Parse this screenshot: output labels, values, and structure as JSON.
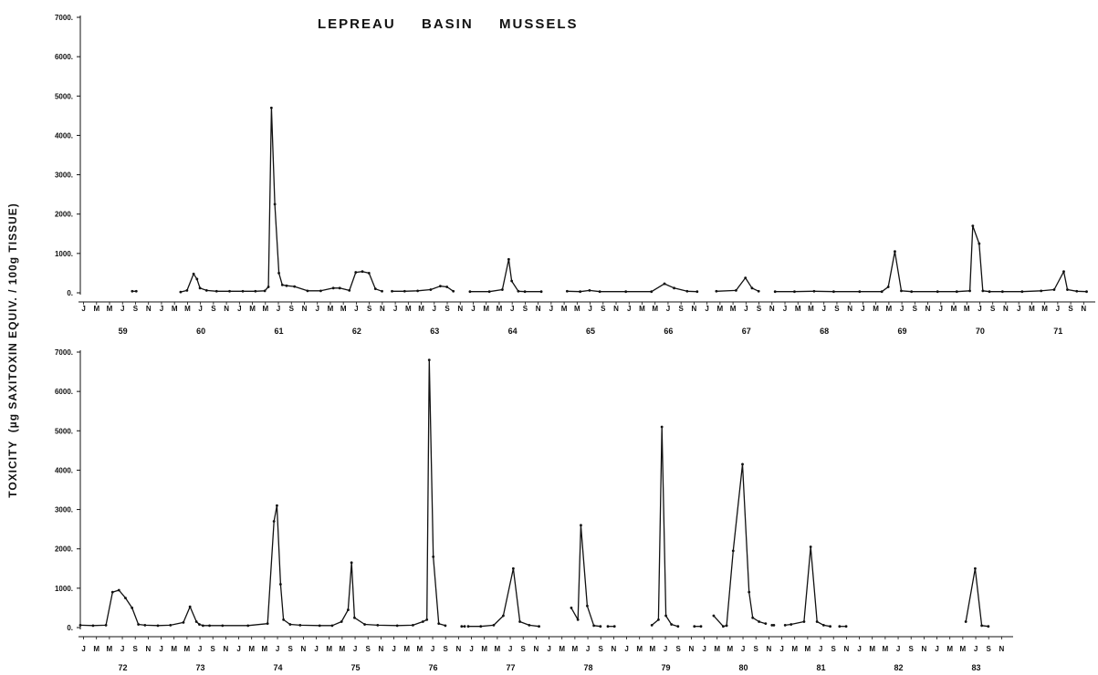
{
  "chart_data": {
    "type": "line",
    "title": "LEPREAU  BASIN  MUSSELS",
    "ylabel": "TOXICITY  (µg SAXITOXIN EQUIV. / 100g TISSUE)",
    "ylim": [
      0,
      7000
    ],
    "yticks": [
      "7000.",
      "6000.",
      "5000.",
      "4000.",
      "3000.",
      "2000.",
      "1000.",
      "0."
    ],
    "grid": false,
    "month_labels": [
      "J",
      "M",
      "M",
      "J",
      "S",
      "N"
    ],
    "panels": [
      {
        "years": [
          "59",
          "60",
          "61",
          "62",
          "63",
          "64",
          "65",
          "66",
          "67",
          "68",
          "69",
          "70",
          "71"
        ],
        "series": [
          {
            "x": [
              "1959-09-01",
              "1959-09-20"
            ],
            "y": [
              40,
              40
            ]
          },
          {
            "x": [
              "1960-04-15",
              "1960-05-15",
              "1960-06-15",
              "1960-07-01",
              "1960-07-15",
              "1960-08-15",
              "1960-10-01",
              "1960-12-01",
              "1961-02-01",
              "1961-04-01",
              "1961-05-15",
              "1961-06-01",
              "1961-06-15",
              "1961-07-01",
              "1961-07-20",
              "1961-08-05",
              "1961-08-25",
              "1961-10-01",
              "1961-12-01",
              "1962-02-01",
              "1962-04-01",
              "1962-05-01",
              "1962-06-15",
              "1962-07-15",
              "1962-08-15",
              "1962-09-15",
              "1962-10-15",
              "1962-11-15"
            ],
            "y": [
              20,
              60,
              480,
              350,
              120,
              60,
              40,
              40,
              40,
              40,
              50,
              150,
              4700,
              2250,
              500,
              200,
              180,
              160,
              50,
              50,
              120,
              120,
              60,
              520,
              540,
              500,
              100,
              40
            ]
          },
          {
            "x": [
              "1963-01-01",
              "1963-03-01",
              "1963-05-01",
              "1963-07-01",
              "1963-08-15",
              "1963-09-15",
              "1963-10-15"
            ],
            "y": [
              40,
              40,
              50,
              80,
              170,
              150,
              40
            ]
          },
          {
            "x": [
              "1964-01-01",
              "1964-04-01",
              "1964-06-01",
              "1964-07-01",
              "1964-07-15",
              "1964-08-15",
              "1964-09-15",
              "1964-12-01"
            ],
            "y": [
              30,
              30,
              80,
              850,
              300,
              40,
              30,
              30
            ]
          },
          {
            "x": [
              "1965-04-01",
              "1965-06-01",
              "1965-07-15",
              "1965-09-01",
              "1966-01-01",
              "1966-05-01",
              "1966-07-01",
              "1966-08-15",
              "1966-10-15",
              "1966-12-01"
            ],
            "y": [
              40,
              30,
              60,
              30,
              30,
              30,
              230,
              120,
              40,
              30
            ]
          },
          {
            "x": [
              "1967-03-01",
              "1967-06-01",
              "1967-07-15",
              "1967-08-15",
              "1967-09-15"
            ],
            "y": [
              40,
              60,
              380,
              120,
              40
            ]
          },
          {
            "x": [
              "1967-12-01",
              "1968-03-01",
              "1968-06-01",
              "1968-09-01",
              "1969-01-01",
              "1969-04-15",
              "1969-05-15",
              "1969-06-15",
              "1969-07-15",
              "1969-09-01",
              "1970-01-01",
              "1970-04-01",
              "1970-06-01",
              "1970-06-15",
              "1970-07-15",
              "1970-08-01",
              "1970-09-01",
              "1970-11-01",
              "1971-02-01",
              "1971-05-01",
              "1971-07-01",
              "1971-08-15",
              "1971-09-01",
              "1971-10-15",
              "1971-11-30"
            ],
            "y": [
              30,
              30,
              40,
              30,
              30,
              30,
              150,
              1050,
              50,
              30,
              30,
              30,
              50,
              1700,
              1250,
              50,
              30,
              30,
              30,
              50,
              80,
              540,
              80,
              40,
              30
            ]
          }
        ]
      },
      {
        "years": [
          "72",
          "73",
          "74",
          "75",
          "76",
          "77",
          "78",
          "79",
          "80",
          "81",
          "82",
          "83"
        ],
        "series": [
          {
            "x": [
              "1972-01-01",
              "1972-03-01",
              "1972-05-01",
              "1972-06-01",
              "1972-07-01",
              "1972-08-01",
              "1972-09-01",
              "1972-10-01",
              "1972-11-01",
              "1973-01-01",
              "1973-03-01",
              "1973-05-01",
              "1973-06-01",
              "1973-07-01",
              "1973-07-15",
              "1973-08-01",
              "1973-09-01",
              "1973-11-01",
              "1974-03-01",
              "1974-06-01",
              "1974-07-01",
              "1974-07-15",
              "1974-08-01",
              "1974-08-15",
              "1974-09-15",
              "1974-11-01",
              "1975-02-01",
              "1975-04-01",
              "1975-05-15",
              "1975-06-15",
              "1975-07-01",
              "1975-07-15",
              "1975-09-01",
              "1975-11-01",
              "1976-02-01",
              "1976-04-15",
              "1976-06-01",
              "1976-06-20",
              "1976-07-01",
              "1976-07-20",
              "1976-08-15",
              "1976-09-15"
            ],
            "y": [
              60,
              50,
              60,
              900,
              950,
              750,
              500,
              80,
              60,
              50,
              60,
              130,
              530,
              150,
              80,
              50,
              50,
              50,
              50,
              100,
              2700,
              3100,
              1100,
              200,
              80,
              60,
              50,
              50,
              150,
              450,
              1650,
              250,
              80,
              60,
              50,
              60,
              150,
              200,
              6800,
              1800,
              100,
              50
            ]
          },
          {
            "x": [
              "1976-12-01",
              "1976-12-15"
            ],
            "y": [
              30,
              30
            ]
          },
          {
            "x": [
              "1977-01-01",
              "1977-03-01",
              "1977-05-01",
              "1977-06-15",
              "1977-08-01",
              "1977-09-01",
              "1977-10-15",
              "1977-11-30"
            ],
            "y": [
              30,
              30,
              60,
              300,
              1500,
              150,
              60,
              30
            ]
          },
          {
            "x": [
              "1978-05-01",
              "1978-06-01",
              "1978-06-15",
              "1978-07-15",
              "1978-08-15",
              "1978-09-15"
            ],
            "y": [
              500,
              200,
              2600,
              550,
              50,
              30
            ]
          },
          {
            "x": [
              "1978-10-20",
              "1978-11-20"
            ],
            "y": [
              30,
              30
            ]
          },
          {
            "x": [
              "1979-05-15",
              "1979-06-15",
              "1979-07-01",
              "1979-07-20",
              "1979-08-15",
              "1979-09-15"
            ],
            "y": [
              60,
              200,
              5100,
              300,
              80,
              30
            ]
          },
          {
            "x": [
              "1979-12-01",
              "1980-01-01"
            ],
            "y": [
              30,
              30
            ]
          },
          {
            "x": [
              "1980-03-01",
              "1980-04-15",
              "1980-05-01",
              "1980-06-01",
              "1980-07-15",
              "1980-08-15",
              "1980-09-01",
              "1980-10-01",
              "1980-11-01"
            ],
            "y": [
              300,
              30,
              50,
              1950,
              4150,
              900,
              250,
              150,
              100
            ]
          },
          {
            "x": [
              "1980-12-01",
              "1980-12-10"
            ],
            "y": [
              60,
              60
            ]
          },
          {
            "x": [
              "1981-02-01",
              "1981-03-01",
              "1981-05-01",
              "1981-06-01",
              "1981-07-01",
              "1981-08-01",
              "1981-09-01"
            ],
            "y": [
              60,
              80,
              150,
              2050,
              150,
              60,
              30
            ]
          },
          {
            "x": [
              "1981-10-15",
              "1981-11-15"
            ],
            "y": [
              30,
              30
            ]
          },
          {
            "x": [
              "1983-06-01",
              "1983-07-15",
              "1983-08-15",
              "1983-09-15"
            ],
            "y": [
              150,
              1500,
              50,
              30
            ]
          }
        ]
      }
    ]
  }
}
